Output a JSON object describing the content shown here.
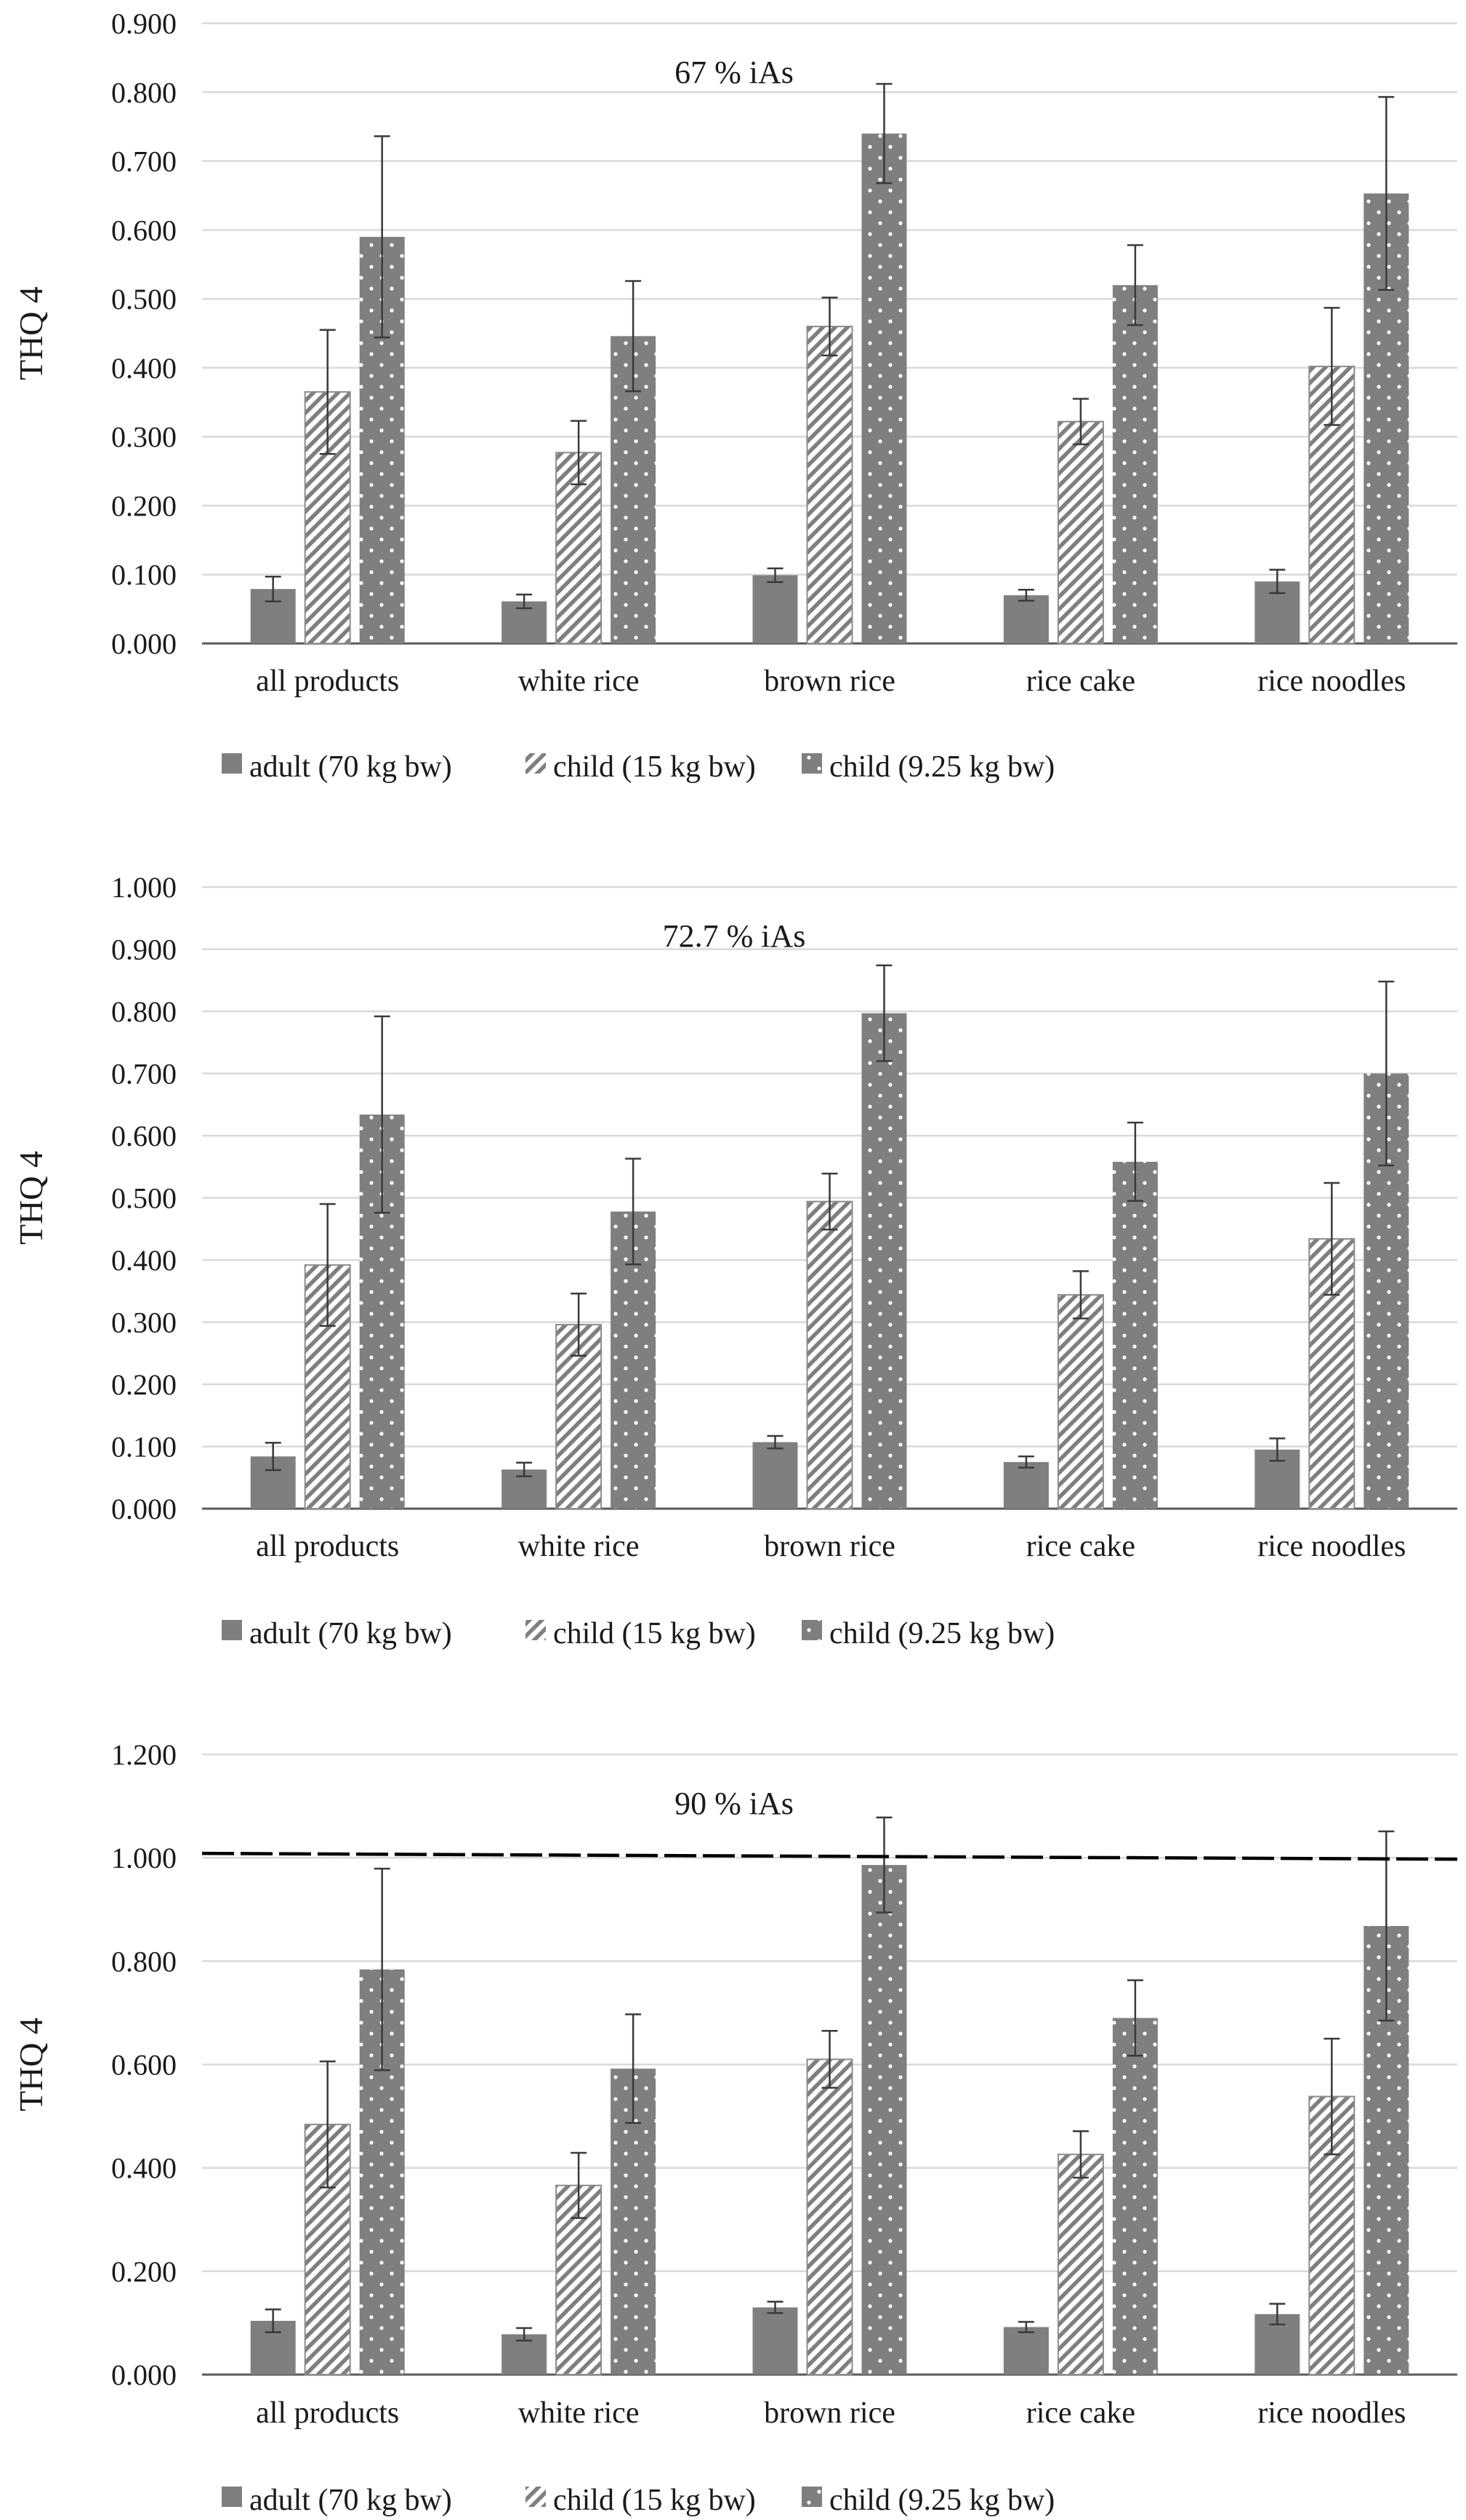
{
  "colors": {
    "bar_fill": "#7f7f7f",
    "bar_light": "#ffffff",
    "grid": "#d9d9d9",
    "axis": "#595959",
    "error": "#3a3a3a",
    "threshold": "#000000",
    "text": "#1a1a1a"
  },
  "legend_labels": [
    "adult (70 kg bw)",
    "child (15 kg bw)",
    "child (9.25 kg bw)"
  ],
  "chart_data": [
    {
      "type": "bar",
      "title": "67 % iAs",
      "ylabel": "THQ  4",
      "xlabel": "",
      "ylim": [
        0,
        0.9
      ],
      "yticks": [
        "0.000",
        "0.100",
        "0.200",
        "0.300",
        "0.400",
        "0.500",
        "0.600",
        "0.700",
        "0.800",
        "0.900"
      ],
      "categories": [
        "all products",
        "white rice",
        "brown rice",
        "rice cake",
        "rice noodles"
      ],
      "series": [
        {
          "name": "adult (70 kg bw)",
          "pattern": "solid",
          "values": [
            0.079,
            0.061,
            0.099,
            0.07,
            0.09
          ],
          "errors": [
            0.018,
            0.01,
            0.01,
            0.008,
            0.017
          ]
        },
        {
          "name": "child (15 kg bw)",
          "pattern": "diagonal",
          "values": [
            0.365,
            0.277,
            0.46,
            0.322,
            0.402
          ],
          "errors": [
            0.09,
            0.046,
            0.042,
            0.033,
            0.085
          ]
        },
        {
          "name": "child (9.25 kg bw)",
          "pattern": "dots",
          "values": [
            0.59,
            0.446,
            0.74,
            0.52,
            0.653
          ],
          "errors": [
            0.146,
            0.08,
            0.072,
            0.058,
            0.14
          ]
        }
      ],
      "legend": "bottom",
      "grid": true
    },
    {
      "type": "bar",
      "title": "72.7 % iAs",
      "ylabel": "THQ  4",
      "xlabel": "",
      "ylim": [
        0,
        1.0
      ],
      "yticks": [
        "0.000",
        "0.100",
        "0.200",
        "0.300",
        "0.400",
        "0.500",
        "0.600",
        "0.700",
        "0.800",
        "0.900",
        "1.000"
      ],
      "categories": [
        "all products",
        "white rice",
        "brown rice",
        "rice cake",
        "rice noodles"
      ],
      "series": [
        {
          "name": "adult (70 kg bw)",
          "pattern": "solid",
          "values": [
            0.084,
            0.063,
            0.107,
            0.075,
            0.095
          ],
          "errors": [
            0.022,
            0.011,
            0.01,
            0.009,
            0.018
          ]
        },
        {
          "name": "child (15 kg bw)",
          "pattern": "diagonal",
          "values": [
            0.392,
            0.296,
            0.494,
            0.344,
            0.434
          ],
          "errors": [
            0.098,
            0.05,
            0.045,
            0.038,
            0.09
          ]
        },
        {
          "name": "child (9.25 kg bw)",
          "pattern": "dots",
          "values": [
            0.634,
            0.478,
            0.797,
            0.558,
            0.7
          ],
          "errors": [
            0.158,
            0.085,
            0.077,
            0.063,
            0.148
          ]
        }
      ],
      "legend": "bottom",
      "grid": true
    },
    {
      "type": "bar",
      "title": "90 % iAs",
      "ylabel": "THQ  4",
      "xlabel": "",
      "ylim": [
        0,
        1.2
      ],
      "yticks": [
        "0.000",
        "0.200",
        "0.400",
        "0.600",
        "0.800",
        "1.000",
        "1.200"
      ],
      "categories": [
        "all products",
        "white rice",
        "brown rice",
        "rice cake",
        "rice noodles"
      ],
      "series": [
        {
          "name": "adult (70 kg bw)",
          "pattern": "solid",
          "values": [
            0.104,
            0.078,
            0.13,
            0.092,
            0.117
          ],
          "errors": [
            0.022,
            0.012,
            0.011,
            0.01,
            0.02
          ]
        },
        {
          "name": "child (15 kg bw)",
          "pattern": "diagonal",
          "values": [
            0.484,
            0.366,
            0.61,
            0.426,
            0.538
          ],
          "errors": [
            0.122,
            0.063,
            0.055,
            0.045,
            0.112
          ]
        },
        {
          "name": "child (9.25 kg bw)",
          "pattern": "dots",
          "values": [
            0.784,
            0.592,
            0.986,
            0.69,
            0.868
          ],
          "errors": [
            0.195,
            0.105,
            0.092,
            0.073,
            0.183
          ]
        }
      ],
      "threshold": 1.0,
      "legend": "bottom",
      "grid": true
    }
  ]
}
